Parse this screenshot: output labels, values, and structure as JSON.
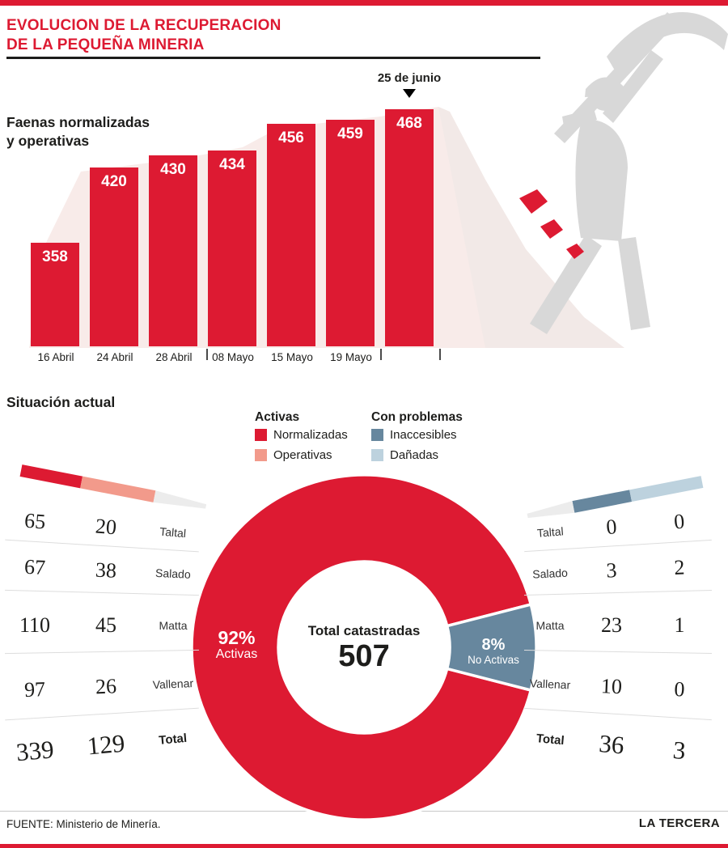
{
  "header": {
    "title": "EVOLUCION DE LA RECUPERACION\nDE LA PEQUEÑA MINERIA"
  },
  "bar_chart": {
    "label": "Faenas normalizadas\ny operativas"
  },
  "situacion": {
    "heading": "Situación actual",
    "legend": {
      "activas_title": "Activas",
      "normalizadas": "Normalizadas",
      "operativas": "Operativas",
      "problemas_title": "Con problemas",
      "inaccesibles": "Inaccesibles",
      "danadas": "Dañadas"
    },
    "donut": {
      "left_pct": "92%",
      "left_label": "Activas",
      "right_pct": "8%",
      "right_label": "No Activas",
      "center_label": "Total catastradas",
      "center_value": "507"
    }
  },
  "footer": {
    "source": "FUENTE: Ministerio de Minería.",
    "brand": "LA TERCERA"
  },
  "colors": {
    "red": "#dd1a32",
    "salmon": "#f29a8b",
    "slate": "#67879e",
    "light_blue": "#bdd2de"
  },
  "chart_data": [
    {
      "type": "bar",
      "title": "Faenas normalizadas y operativas",
      "categories": [
        "16 Abril",
        "24 Abril",
        "28 Abril",
        "08 Mayo",
        "15 Mayo",
        "19 Mayo",
        "25 de junio"
      ],
      "values": [
        358,
        420,
        430,
        434,
        456,
        459,
        468
      ],
      "annotation": {
        "label": "25 de junio",
        "index": 6
      },
      "ylim": [
        0,
        500
      ],
      "bar_color_key": "red"
    },
    {
      "type": "pie",
      "title": "Situación actual",
      "segments": [
        {
          "label": "Activas",
          "pct": 92,
          "color_key": "red"
        },
        {
          "label": "No Activas",
          "pct": 8,
          "color_key": "slate"
        }
      ],
      "center": {
        "label": "Total catastradas",
        "value": "507"
      }
    },
    {
      "type": "table",
      "side": "left",
      "group": "Activas",
      "columns": [
        "Normalizadas",
        "Operativas"
      ],
      "rows": [
        {
          "region": "Taltal",
          "values": [
            65,
            20
          ]
        },
        {
          "region": "Salado",
          "values": [
            67,
            38
          ]
        },
        {
          "region": "Matta",
          "values": [
            110,
            45
          ]
        },
        {
          "region": "Vallenar",
          "values": [
            97,
            26
          ]
        },
        {
          "region": "Total",
          "values": [
            339,
            129
          ],
          "is_total": true
        }
      ]
    },
    {
      "type": "table",
      "side": "right",
      "group": "Con problemas",
      "columns": [
        "Inaccesibles",
        "Dañadas"
      ],
      "rows": [
        {
          "region": "Taltal",
          "values": [
            0,
            0
          ]
        },
        {
          "region": "Salado",
          "values": [
            3,
            2
          ]
        },
        {
          "region": "Matta",
          "values": [
            23,
            1
          ]
        },
        {
          "region": "Vallenar",
          "values": [
            10,
            0
          ]
        },
        {
          "region": "Total",
          "values": [
            36,
            3
          ],
          "is_total": true
        }
      ]
    }
  ]
}
